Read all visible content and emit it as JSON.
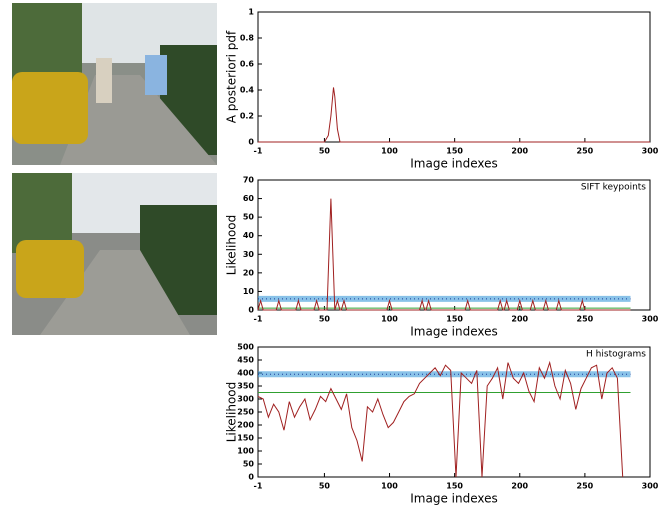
{
  "chart_data": [
    {
      "type": "line",
      "y_label": "A posteriori pdf",
      "x_label": "Image indexes",
      "xlim": [
        -1,
        300
      ],
      "xticks": [
        -1,
        50,
        100,
        150,
        200,
        250,
        300
      ],
      "ylim": [
        0,
        1
      ],
      "yticks": [
        0,
        0.2,
        0.4,
        0.6,
        0.8,
        1
      ],
      "series": [
        {
          "color": "#a02020",
          "x": [
            -1,
            50,
            53,
            55,
            57,
            58,
            60,
            62,
            300
          ],
          "values": [
            0,
            0,
            0.05,
            0.2,
            0.42,
            0.35,
            0.1,
            0,
            0
          ]
        }
      ]
    },
    {
      "type": "line",
      "title": "SIFT keypoints",
      "y_label": "Likelihood",
      "x_label": "Image indexes",
      "xlim": [
        -1,
        300
      ],
      "xticks": [
        -1,
        50,
        100,
        150,
        200,
        250,
        300
      ],
      "ylim": [
        0,
        70
      ],
      "yticks": [
        0,
        10,
        20,
        30,
        40,
        50,
        60,
        70
      ],
      "series": [
        {
          "color": "#3a9ad9",
          "x": [
            -1,
            285
          ],
          "values": [
            6,
            6
          ]
        },
        {
          "color": "#30a030",
          "x": [
            -1,
            285
          ],
          "values": [
            1,
            1
          ]
        },
        {
          "color": "#a02020",
          "x": [
            -1,
            1,
            3,
            13,
            15,
            17,
            28,
            30,
            32,
            42,
            44,
            46,
            52,
            55,
            58,
            60,
            62,
            63,
            65,
            67,
            98,
            100,
            102,
            123,
            125,
            127,
            128,
            130,
            132,
            158,
            160,
            162,
            183,
            185,
            187,
            188,
            190,
            192,
            198,
            200,
            202,
            208,
            210,
            212,
            218,
            220,
            222,
            228,
            230,
            232,
            246,
            248,
            250,
            285
          ],
          "values": [
            0,
            5,
            0,
            0,
            5,
            0,
            0,
            5,
            0,
            0,
            5,
            0,
            0,
            60,
            0,
            5,
            0,
            0,
            5,
            0,
            0,
            5,
            0,
            0,
            5,
            0,
            0,
            5,
            0,
            0,
            5,
            0,
            0,
            5,
            0,
            0,
            5,
            0,
            0,
            5,
            0,
            0,
            5,
            0,
            0,
            5,
            0,
            0,
            5,
            0,
            0,
            5,
            0,
            0
          ]
        }
      ]
    },
    {
      "type": "line",
      "title": "H histograms",
      "y_label": "Likelihood",
      "x_label": "Image indexes",
      "xlim": [
        -1,
        300
      ],
      "xticks": [
        -1,
        50,
        100,
        150,
        200,
        250,
        300
      ],
      "ylim": [
        0,
        500
      ],
      "yticks": [
        0,
        50,
        100,
        150,
        200,
        250,
        300,
        350,
        400,
        450,
        500
      ],
      "series": [
        {
          "color": "#3a9ad9",
          "x": [
            -1,
            285
          ],
          "values": [
            395,
            395
          ]
        },
        {
          "color": "#30a030",
          "x": [
            -1,
            285
          ],
          "values": [
            325,
            325
          ]
        },
        {
          "color": "#a02020",
          "x": [
            -1,
            3,
            7,
            11,
            15,
            19,
            23,
            27,
            31,
            35,
            39,
            43,
            47,
            51,
            55,
            59,
            63,
            67,
            71,
            75,
            79,
            83,
            87,
            91,
            95,
            99,
            103,
            107,
            111,
            115,
            119,
            123,
            127,
            131,
            135,
            139,
            143,
            147,
            151,
            155,
            159,
            163,
            167,
            171,
            175,
            179,
            183,
            187,
            191,
            195,
            199,
            203,
            207,
            211,
            215,
            219,
            223,
            227,
            231,
            235,
            239,
            243,
            247,
            251,
            255,
            259,
            263,
            267,
            271,
            275,
            279
          ],
          "values": [
            310,
            300,
            230,
            280,
            250,
            180,
            290,
            230,
            270,
            300,
            220,
            260,
            310,
            290,
            340,
            300,
            260,
            320,
            190,
            140,
            60,
            270,
            250,
            300,
            240,
            190,
            210,
            250,
            290,
            310,
            320,
            360,
            380,
            400,
            420,
            390,
            430,
            410,
            0,
            400,
            380,
            360,
            410,
            0,
            350,
            380,
            420,
            300,
            440,
            380,
            360,
            400,
            330,
            290,
            420,
            380,
            440,
            350,
            300,
            410,
            360,
            260,
            340,
            380,
            420,
            430,
            300,
            400,
            420,
            380,
            0
          ]
        }
      ]
    }
  ]
}
